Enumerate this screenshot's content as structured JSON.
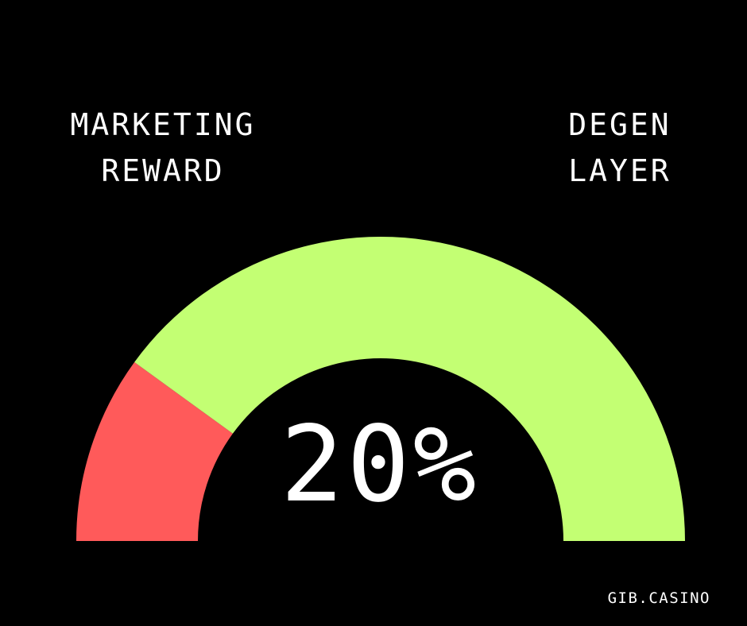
{
  "left_label": {
    "line1": "MARKETING",
    "line2": "REWARD"
  },
  "right_label": {
    "line1": "DEGEN",
    "line2": "LAYER"
  },
  "value_text": "20%",
  "brand": "GIB.CASINO",
  "colors": {
    "background": "#000000",
    "marketing_reward": "#ff5a5a",
    "degen_layer": "#c3ff73",
    "text": "#ffffff"
  },
  "chart_data": {
    "type": "pie",
    "variant": "semicircle-gauge",
    "segments": [
      {
        "name": "MARKETING REWARD",
        "value": 20,
        "color": "#ff5a5a"
      },
      {
        "name": "DEGEN LAYER",
        "value": 80,
        "color": "#c3ff73"
      }
    ],
    "center_label": "20%"
  }
}
